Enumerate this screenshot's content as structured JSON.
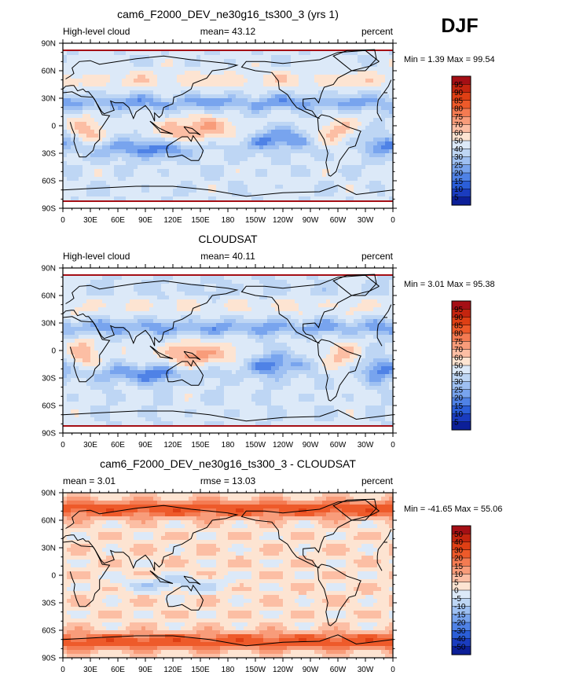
{
  "season": "DJF",
  "chart_data": [
    {
      "type": "heatmap",
      "title": "cam6_F2000_DEV_ne30g16_ts300_3 (yrs 1)",
      "left_label": "High-level cloud",
      "center_label": "mean=  43.12",
      "units": "percent",
      "stats": "Min =   1.39 Max =  99.54",
      "mean": 43.12,
      "min": 1.39,
      "max": 99.54,
      "y_ticks": [
        "90N",
        "60N",
        "30N",
        "0",
        "30S",
        "60S",
        "90S"
      ],
      "x_ticks": [
        "0",
        "30E",
        "60E",
        "90E",
        "120E",
        "150E",
        "180",
        "150W",
        "120W",
        "90W",
        "60W",
        "30W",
        "0"
      ],
      "xlim": [
        0,
        360
      ],
      "ylim": [
        -90,
        90
      ],
      "colorbar_labels": [
        "95",
        "90",
        "85",
        "80",
        "75",
        "70",
        "60",
        "50",
        "40",
        "30",
        "25",
        "20",
        "15",
        "10",
        "5"
      ],
      "colorbar_colors": [
        "#a50f15",
        "#c4250f",
        "#de3f14",
        "#ee5a2a",
        "#f47b52",
        "#f89c7a",
        "#fcbea4",
        "#fde4d2",
        "#dce9f8",
        "#bed6f4",
        "#9ec0f2",
        "#78a4ee",
        "#4f82e6",
        "#2b5ed8",
        "#1a3cbf",
        "#0c1f98"
      ]
    },
    {
      "type": "heatmap",
      "title": "CLOUDSAT",
      "left_label": "High-level cloud",
      "center_label": "mean=  40.11",
      "units": "percent",
      "stats": "Min =   3.01 Max =  95.38",
      "mean": 40.11,
      "min": 3.01,
      "max": 95.38,
      "y_ticks": [
        "90N",
        "60N",
        "30N",
        "0",
        "30S",
        "60S",
        "90S"
      ],
      "x_ticks": [
        "0",
        "30E",
        "60E",
        "90E",
        "120E",
        "150E",
        "180",
        "150W",
        "120W",
        "90W",
        "60W",
        "30W",
        "0"
      ],
      "xlim": [
        0,
        360
      ],
      "ylim": [
        -90,
        90
      ],
      "colorbar_labels": [
        "95",
        "90",
        "85",
        "80",
        "75",
        "70",
        "60",
        "50",
        "40",
        "30",
        "25",
        "20",
        "15",
        "10",
        "5"
      ],
      "colorbar_colors": [
        "#a50f15",
        "#c4250f",
        "#de3f14",
        "#ee5a2a",
        "#f47b52",
        "#f89c7a",
        "#fcbea4",
        "#fde4d2",
        "#dce9f8",
        "#bed6f4",
        "#9ec0f2",
        "#78a4ee",
        "#4f82e6",
        "#2b5ed8",
        "#1a3cbf",
        "#0c1f98"
      ]
    },
    {
      "type": "heatmap",
      "title": "cam6_F2000_DEV_ne30g16_ts300_3 - CLOUDSAT",
      "left_label": "mean =    3.01",
      "center_label": "rmse =   13.03",
      "units": "percent",
      "stats": "Min = -41.65 Max =  55.06",
      "mean": 3.01,
      "rmse": 13.03,
      "min": -41.65,
      "max": 55.06,
      "y_ticks": [
        "90N",
        "60N",
        "30N",
        "0",
        "30S",
        "60S",
        "90S"
      ],
      "x_ticks": [
        "0",
        "30E",
        "60E",
        "90E",
        "120E",
        "150E",
        "180",
        "150W",
        "120W",
        "90W",
        "60W",
        "30W",
        "0"
      ],
      "xlim": [
        0,
        360
      ],
      "ylim": [
        -90,
        90
      ],
      "colorbar_labels": [
        "50",
        "40",
        "30",
        "20",
        "15",
        "10",
        "5",
        "0",
        "-5",
        "-10",
        "-15",
        "-20",
        "-30",
        "-40",
        "-50"
      ],
      "colorbar_colors": [
        "#a50f15",
        "#c4250f",
        "#de3f14",
        "#ee5a2a",
        "#f47b52",
        "#f89c7a",
        "#fcbea4",
        "#fde4d2",
        "#dce9f8",
        "#bed6f4",
        "#9ec0f2",
        "#78a4ee",
        "#4f82e6",
        "#2b5ed8",
        "#1a3cbf",
        "#0c1f98"
      ]
    }
  ]
}
